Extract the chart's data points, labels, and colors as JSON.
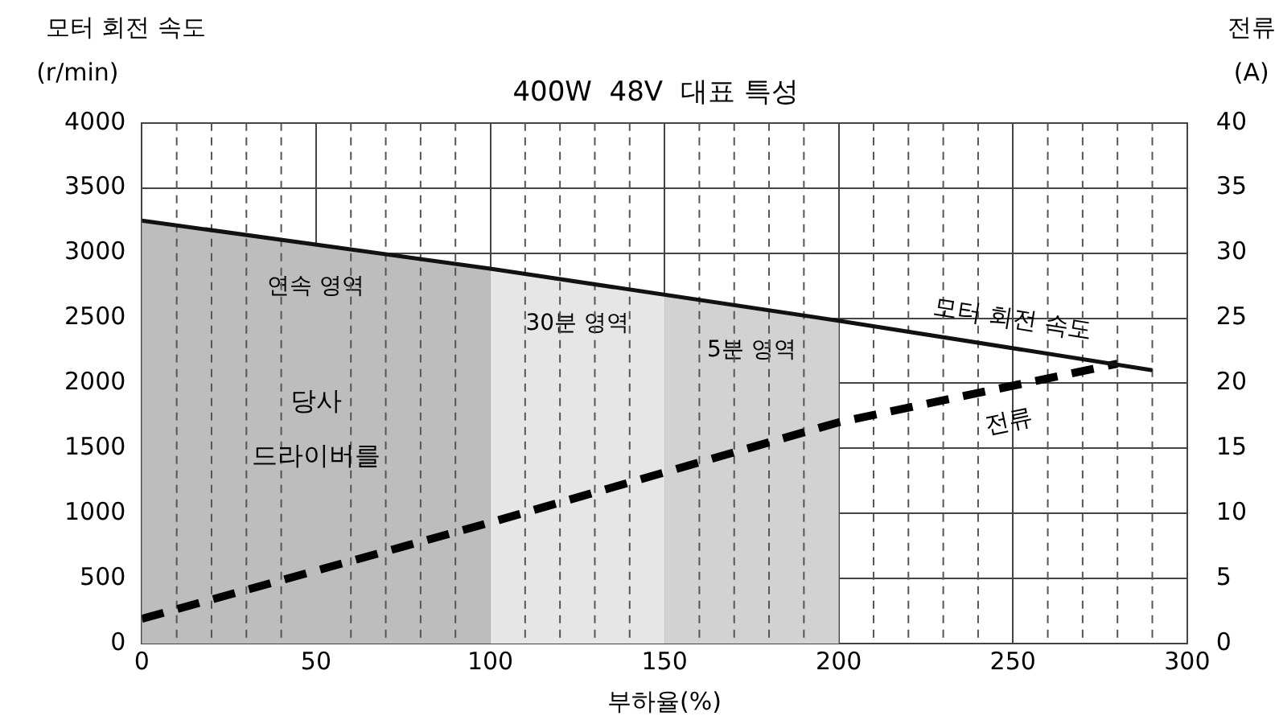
{
  "chart_data": {
    "type": "line",
    "title": "400W  48V  대표 특성",
    "xlabel": "부하율(%)",
    "ylabel": "모터 회전 속도\n(r/min)",
    "y2label": "전류\n(A)",
    "x": [
      0,
      100,
      200,
      290
    ],
    "series": [
      {
        "name": "모터 회전 속도",
        "color": "#111111",
        "values": [
          3250,
          2880,
          2480,
          2100
        ],
        "line_style": "solid"
      },
      {
        "name": "전류",
        "color": "#000000",
        "x": [
          0,
          100,
          200,
          280
        ],
        "values": [
          1.9,
          9.3,
          17,
          21.5
        ],
        "axis": "y2",
        "line_style": "dashed"
      }
    ],
    "xlim": [
      0,
      300
    ],
    "xticks": [
      0,
      50,
      100,
      150,
      200,
      250,
      300
    ],
    "ylim": [
      0,
      4000
    ],
    "yticks": [
      0,
      500,
      1000,
      1500,
      2000,
      2500,
      3000,
      3500,
      4000
    ],
    "y2lim": [
      0,
      40
    ],
    "y2ticks": [
      0,
      5,
      10,
      15,
      20,
      25,
      30,
      35,
      40
    ],
    "bands": [
      {
        "axis": "x",
        "from": 0,
        "to": 100,
        "label": "연속 영역",
        "color": "#bdbdbd"
      },
      {
        "axis": "x",
        "from": 100,
        "to": 150,
        "label": "30분 영역",
        "color": "#e6e6e6"
      },
      {
        "axis": "x",
        "from": 150,
        "to": 200,
        "label": "5분 영역",
        "color": "#d2d2d2"
      }
    ],
    "annotations": [
      "당사\n드라이버를"
    ],
    "grid": true,
    "legend": false,
    "marker": "none"
  }
}
